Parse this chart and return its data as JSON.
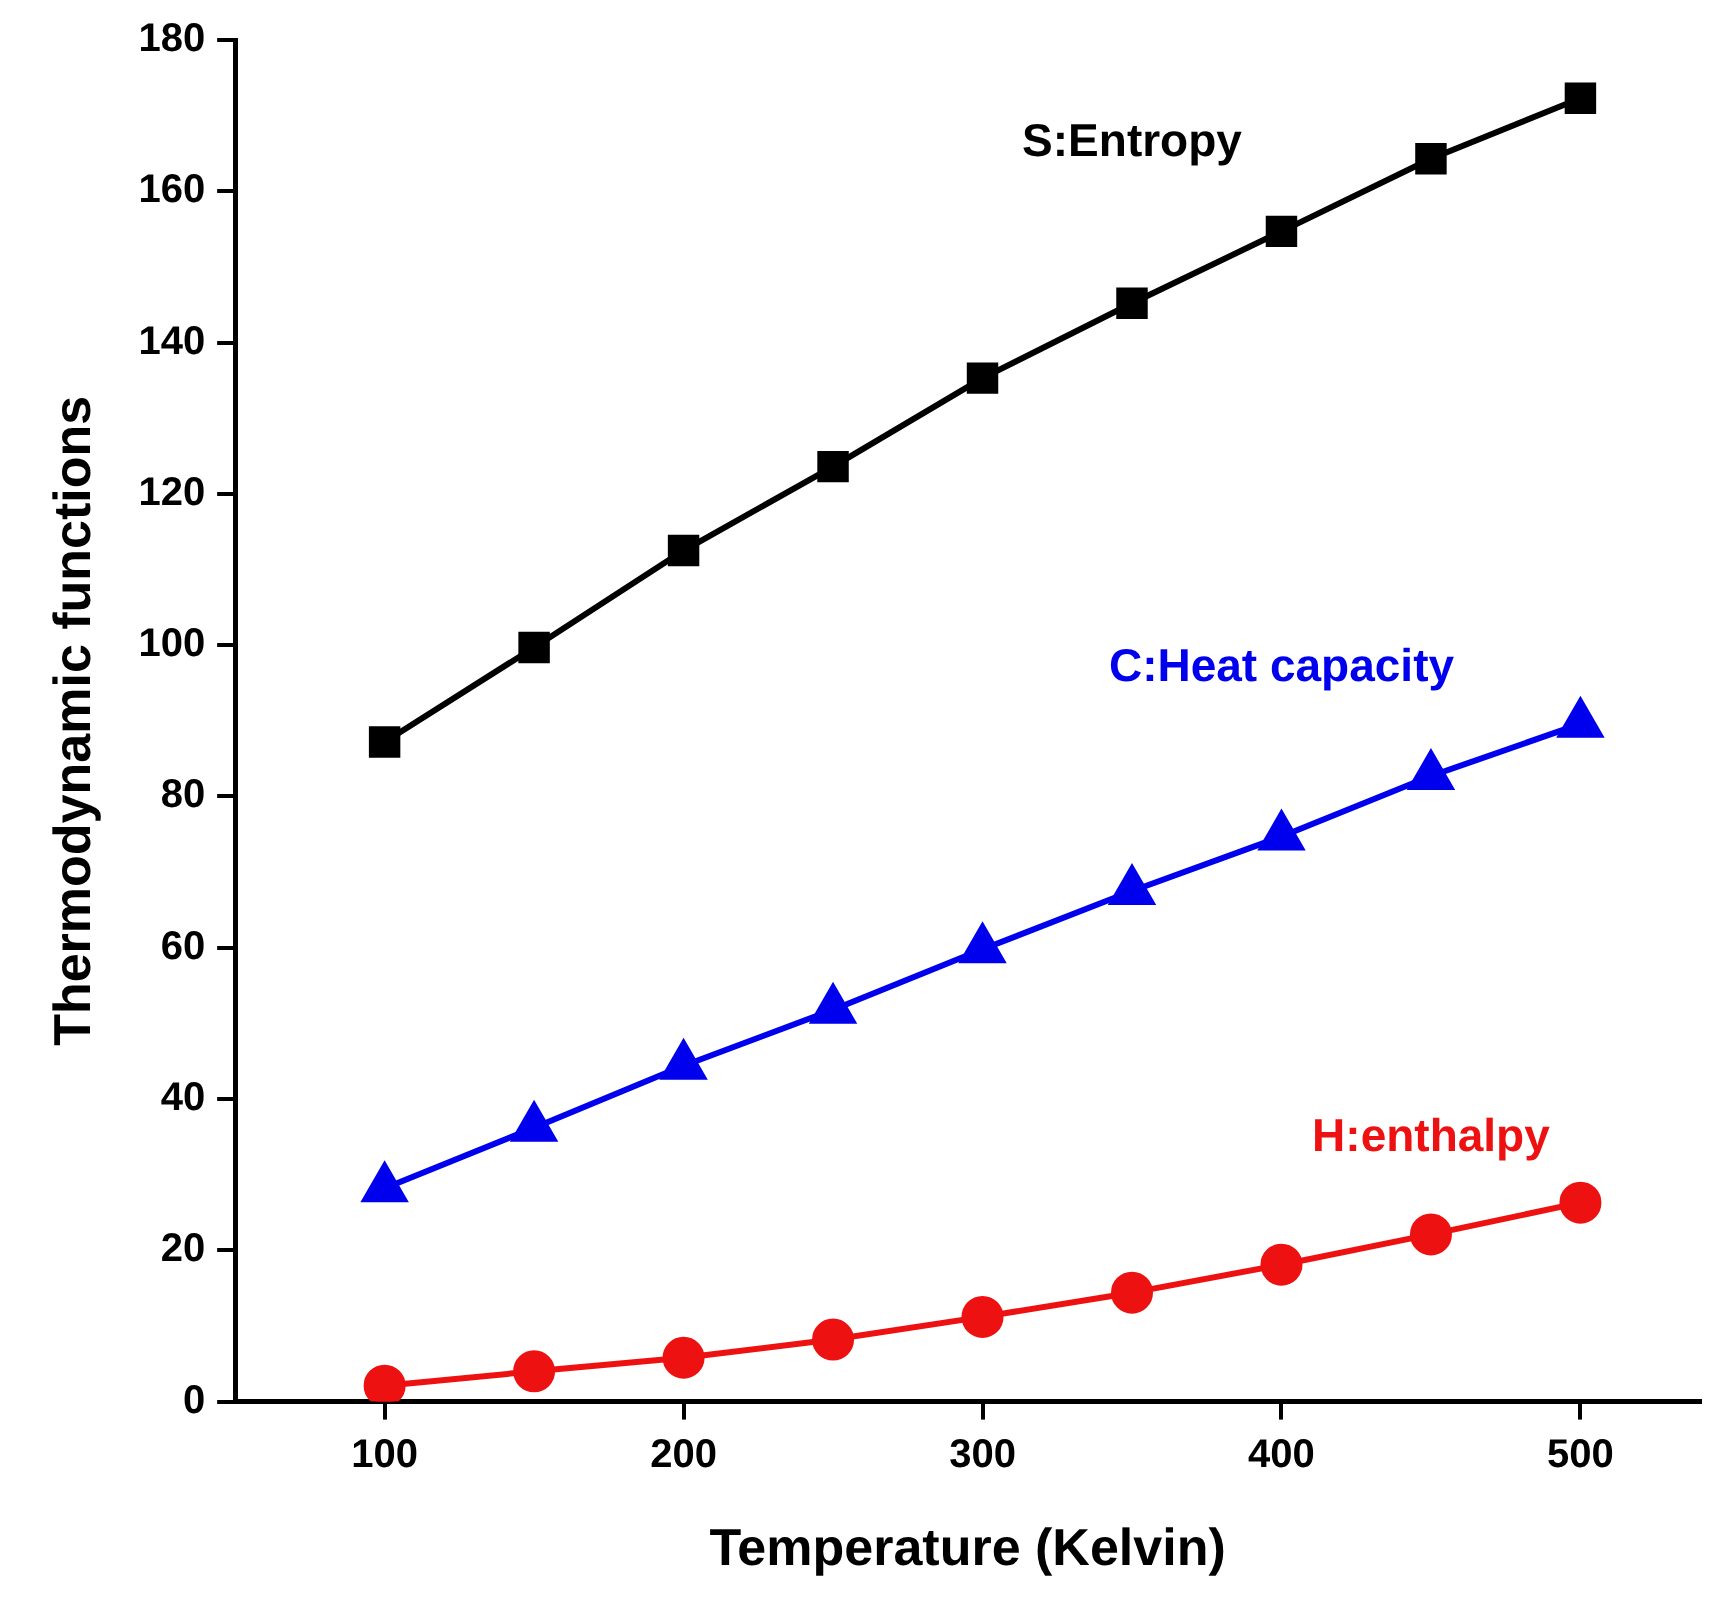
{
  "chart_data": {
    "type": "line",
    "xlabel": "Temperature (Kelvin)",
    "ylabel": "Thermodynamic functions",
    "x": [
      100,
      150,
      200,
      250,
      300,
      350,
      400,
      450,
      500
    ],
    "series": [
      {
        "name": "S:Entropy",
        "color": "#000000",
        "marker": "square",
        "values": [
          87.2,
          99.7,
          112.5,
          123.6,
          135.3,
          145.2,
          154.7,
          164.3,
          172.3
        ]
      },
      {
        "name": "C:Heat capacity",
        "color": "#0000ee",
        "marker": "triangle",
        "values": [
          28.2,
          36.2,
          44.4,
          51.8,
          59.8,
          67.5,
          74.7,
          82.7,
          89.6
        ]
      },
      {
        "name": "H:enthalpy",
        "color": "#ee1111",
        "marker": "circle",
        "values": [
          2.1,
          4.0,
          5.8,
          8.2,
          11.2,
          14.4,
          18.1,
          22.1,
          26.3
        ]
      }
    ],
    "xlim": [
      50,
      540
    ],
    "xticks": [
      100,
      200,
      300,
      400,
      500
    ],
    "ylim": [
      0,
      180
    ],
    "yticks": [
      0,
      20,
      40,
      60,
      80,
      100,
      120,
      140,
      160,
      180
    ],
    "grid": false,
    "legend": false,
    "line_style": "solid"
  }
}
